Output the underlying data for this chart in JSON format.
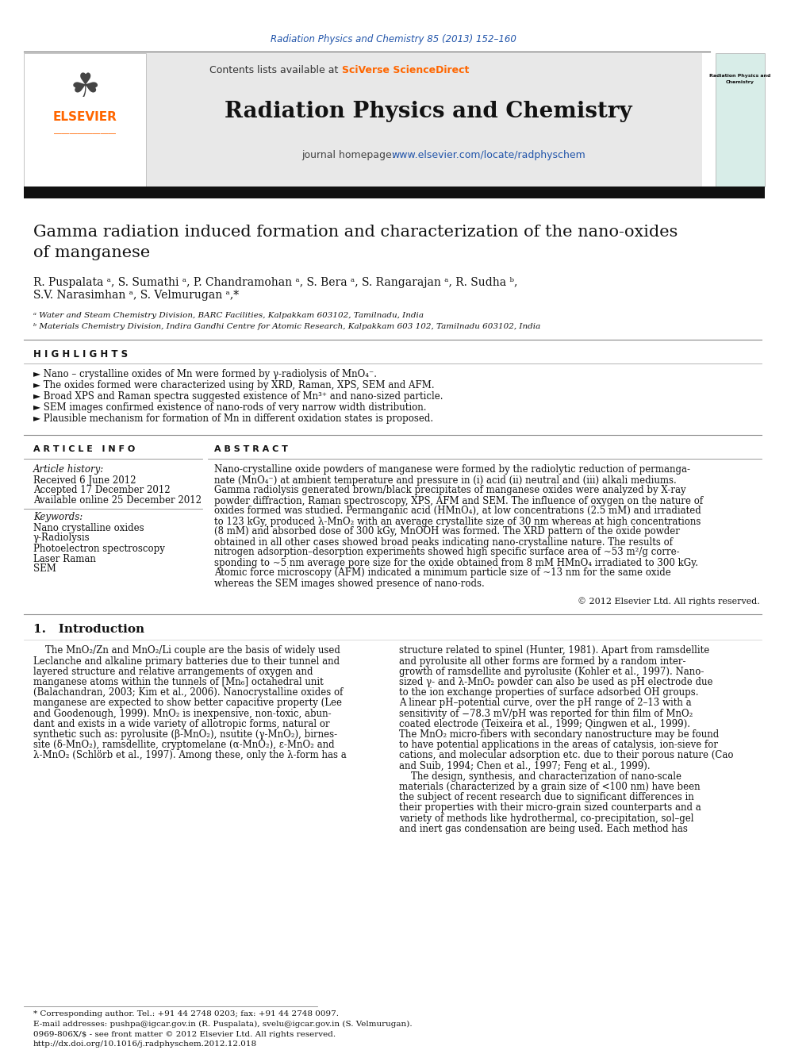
{
  "page_width": 9.92,
  "page_height": 13.23,
  "bg_color": "#ffffff",
  "journal_ref": "Radiation Physics and Chemistry 85 (2013) 152–160",
  "journal_ref_color": "#2255aa",
  "header_bg": "#e8e8e8",
  "journal_title": "Radiation Physics and Chemistry",
  "journal_url": "www.elsevier.com/locate/radphyschem",
  "paper_title_line1": "Gamma radiation induced formation and characterization of the nano-oxides",
  "paper_title_line2": "of manganese",
  "authors_line1": "R. Puspalata ᵃ, S. Sumathi ᵃ, P. Chandramohan ᵃ, S. Bera ᵃ, S. Rangarajan ᵃ, R. Sudha ᵇ,",
  "authors_line2": "S.V. Narasimhan ᵃ, S. Velmurugan ᵃ,*",
  "affil_a": "ᵃ Water and Steam Chemistry Division, BARC Facilities, Kalpakkam 603102, Tamilnadu, India",
  "affil_b": "ᵇ Materials Chemistry Division, Indira Gandhi Centre for Atomic Research, Kalpakkam 603 102, Tamilnadu 603102, India",
  "highlights_title": "H I G H L I G H T S",
  "highlights": [
    "Nano – crystalline oxides of Mn were formed by γ-radiolysis of MnO₄⁻.",
    "The oxides formed were characterized using by XRD, Raman, XPS, SEM and AFM.",
    "Broad XPS and Raman spectra suggested existence of Mn³⁺ and nano-sized particle.",
    "SEM images confirmed existence of nano-rods of very narrow width distribution.",
    "Plausible mechanism for formation of Mn in different oxidation states is proposed."
  ],
  "article_info_title": "A R T I C L E   I N F O",
  "article_history_label": "Article history:",
  "received": "Received 6 June 2012",
  "accepted": "Accepted 17 December 2012",
  "available": "Available online 25 December 2012",
  "keywords_label": "Keywords:",
  "keywords": [
    "Nano crystalline oxides",
    "γ-Radiolysis",
    "Photoelectron spectroscopy",
    "Laser Raman",
    "SEM"
  ],
  "abstract_title": "A B S T R A C T",
  "abstract_lines": [
    "Nano-crystalline oxide powders of manganese were formed by the radiolytic reduction of permanga-",
    "nate (MnO₄⁻) at ambient temperature and pressure in (i) acid (ii) neutral and (iii) alkali mediums.",
    "Gamma radiolysis generated brown/black precipitates of manganese oxides were analyzed by X-ray",
    "powder diffraction, Raman spectroscopy, XPS, AFM and SEM. The influence of oxygen on the nature of",
    "oxides formed was studied. Permanganic acid (HMnO₄), at low concentrations (2.5 mM) and irradiated",
    "to 123 kGy, produced λ-MnO₂ with an average crystallite size of 30 nm whereas at high concentrations",
    "(8 mM) and absorbed dose of 300 kGy, MnOOH was formed. The XRD pattern of the oxide powder",
    "obtained in all other cases showed broad peaks indicating nano-crystalline nature. The results of",
    "nitrogen adsorption–desorption experiments showed high specific surface area of ~53 m²/g corre-",
    "sponding to ~5 nm average pore size for the oxide obtained from 8 mM HMnO₄ irradiated to 300 kGy.",
    "Atomic force microscopy (AFM) indicated a minimum particle size of ~13 nm for the same oxide",
    "whereas the SEM images showed presence of nano-rods."
  ],
  "copyright": "© 2012 Elsevier Ltd. All rights reserved.",
  "intro_title": "1.   Introduction",
  "intro_col1_lines": [
    "    The MnO₂/Zn and MnO₂/Li couple are the basis of widely used",
    "Leclanche and alkaline primary batteries due to their tunnel and",
    "layered structure and relative arrangements of oxygen and",
    "manganese atoms within the tunnels of [Mn₆] octahedral unit",
    "(Balachandran, 2003; Kim et al., 2006). Nanocrystalline oxides of",
    "manganese are expected to show better capacitive property (Lee",
    "and Goodenough, 1999). MnO₂ is inexpensive, non-toxic, abun-",
    "dant and exists in a wide variety of allotropic forms, natural or",
    "synthetic such as: pyrolusite (β-MnO₂), nsutite (γ-MnO₂), birnes-",
    "site (δ-MnO₂), ramsdellite, cryptomelane (α-MnO₂), ε-MnO₂ and",
    "λ-MnO₂ (Schlörb et al., 1997). Among these, only the λ-form has a"
  ],
  "intro_col2_lines": [
    "structure related to spinel (Hunter, 1981). Apart from ramsdellite",
    "and pyrolusite all other forms are formed by a random inter-",
    "growth of ramsdellite and pyrolusite (Kohler et al., 1997). Nano-",
    "sized γ- and λ-MnO₂ powder can also be used as pH electrode due",
    "to the ion exchange properties of surface adsorbed OH groups.",
    "A linear pH–potential curve, over the pH range of 2–13 with a",
    "sensitivity of −78.3 mV/pH was reported for thin film of MnO₂",
    "coated electrode (Teixeira et al., 1999; Qingwen et al., 1999).",
    "The MnO₂ micro-fibers with secondary nanostructure may be found",
    "to have potential applications in the areas of catalysis, ion-sieve for",
    "cations, and molecular adsorption etc. due to their porous nature (Cao",
    "and Suib, 1994; Chen et al., 1997; Feng et al., 1999).",
    "    The design, synthesis, and characterization of nano-scale",
    "materials (characterized by a grain size of <100 nm) have been",
    "the subject of recent research due to significant differences in",
    "their properties with their micro-grain sized counterparts and a",
    "variety of methods like hydrothermal, co-precipitation, sol–gel",
    "and inert gas condensation are being used. Each method has"
  ],
  "footnote_corresponding": "* Corresponding author. Tel.: +91 44 2748 0203; fax: +91 44 2748 0097.",
  "footnote_email": "E-mail addresses: pushpa@igcar.gov.in (R. Puspalata), svelu@igcar.gov.in (S. Velmurugan).",
  "footnote_issn": "0969-806X/$ - see front matter © 2012 Elsevier Ltd. All rights reserved.",
  "footnote_doi": "http://dx.doi.org/10.1016/j.radphyschem.2012.12.018"
}
